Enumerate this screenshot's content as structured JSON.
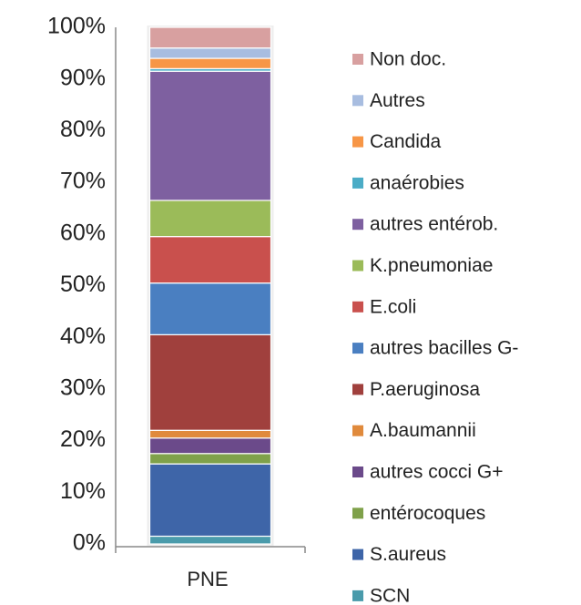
{
  "chart_data": {
    "type": "stacked_bar",
    "categories": [
      "PNE"
    ],
    "ylim": [
      0,
      100
    ],
    "yticks": [
      {
        "value": 0,
        "label": "0%"
      },
      {
        "value": 10,
        "label": "10%"
      },
      {
        "value": 20,
        "label": "20%"
      },
      {
        "value": 30,
        "label": "30%"
      },
      {
        "value": 40,
        "label": "40%"
      },
      {
        "value": 50,
        "label": "50%"
      },
      {
        "value": 60,
        "label": "60%"
      },
      {
        "value": 70,
        "label": "70%"
      },
      {
        "value": 80,
        "label": "80%"
      },
      {
        "value": 90,
        "label": "90%"
      },
      {
        "value": 100,
        "label": "100%"
      }
    ],
    "legend": "right",
    "series": [
      {
        "name": "SCN",
        "color": "#4a9bab",
        "values": [
          1.5
        ]
      },
      {
        "name": "S.aureus",
        "color": "#3e65a8",
        "values": [
          14
        ]
      },
      {
        "name": "entérocoques",
        "color": "#7fa14a",
        "values": [
          2
        ]
      },
      {
        "name": "autres cocci G+",
        "color": "#6b4a8a",
        "values": [
          3
        ]
      },
      {
        "name": "A.baumannii",
        "color": "#e08a3c",
        "values": [
          1.5
        ]
      },
      {
        "name": "P.aeruginosa",
        "color": "#a0403d",
        "values": [
          18.5
        ]
      },
      {
        "name": "autres bacilles G-",
        "color": "#4a7fc1",
        "values": [
          10
        ]
      },
      {
        "name": "E.coli",
        "color": "#c9504d",
        "values": [
          9
        ]
      },
      {
        "name": "K.pneumoniae",
        "color": "#9bbb59",
        "values": [
          7
        ]
      },
      {
        "name": "autres entérob.",
        "color": "#7e60a0",
        "values": [
          25
        ]
      },
      {
        "name": "anaérobies",
        "color": "#4bacc6",
        "values": [
          0.5
        ]
      },
      {
        "name": "Candida",
        "color": "#f79646",
        "values": [
          2
        ]
      },
      {
        "name": "Autres",
        "color": "#a8bde0",
        "values": [
          2
        ]
      },
      {
        "name": "Non doc.",
        "color": "#d8a0a0",
        "values": [
          4
        ]
      }
    ]
  }
}
